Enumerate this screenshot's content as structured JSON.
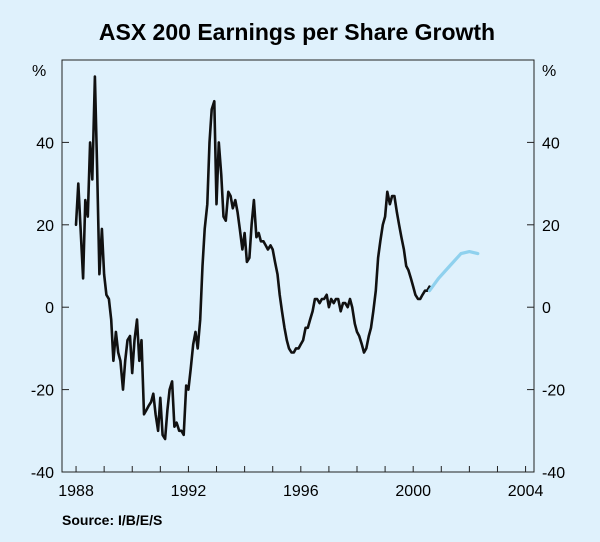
{
  "chart_data": {
    "type": "line",
    "title": "ASX 200 Earnings per Share Growth",
    "source": "Source: I/B/E/S",
    "y_unit_left": "%",
    "y_unit_right": "%",
    "xlim": [
      1987.5,
      2004.3
    ],
    "ylim": [
      -40,
      60
    ],
    "x_ticks": [
      1988,
      1992,
      1996,
      2000,
      2004
    ],
    "x_tick_labels": [
      "1988",
      "1992",
      "1996",
      "2000",
      "2004"
    ],
    "y_ticks": [
      -40,
      -20,
      0,
      20,
      40
    ],
    "y_tick_labels": [
      "-40",
      "-20",
      "0",
      "20",
      "40"
    ],
    "grid": false,
    "series": [
      {
        "color": "#111111",
        "points": [
          [
            1988.0,
            20
          ],
          [
            1988.08,
            30
          ],
          [
            1988.17,
            18
          ],
          [
            1988.25,
            7
          ],
          [
            1988.33,
            26
          ],
          [
            1988.42,
            22
          ],
          [
            1988.5,
            40
          ],
          [
            1988.58,
            31
          ],
          [
            1988.67,
            56
          ],
          [
            1988.75,
            34
          ],
          [
            1988.83,
            8
          ],
          [
            1988.92,
            19
          ],
          [
            1989.0,
            8
          ],
          [
            1989.08,
            3
          ],
          [
            1989.17,
            2
          ],
          [
            1989.25,
            -3
          ],
          [
            1989.33,
            -13
          ],
          [
            1989.42,
            -6
          ],
          [
            1989.5,
            -11
          ],
          [
            1989.58,
            -13
          ],
          [
            1989.67,
            -20
          ],
          [
            1989.75,
            -13
          ],
          [
            1989.83,
            -8
          ],
          [
            1989.92,
            -7
          ],
          [
            1990.0,
            -16
          ],
          [
            1990.08,
            -8
          ],
          [
            1990.17,
            -3
          ],
          [
            1990.25,
            -13
          ],
          [
            1990.33,
            -8
          ],
          [
            1990.42,
            -26
          ],
          [
            1990.5,
            -25
          ],
          [
            1990.58,
            -24
          ],
          [
            1990.67,
            -23
          ],
          [
            1990.75,
            -21
          ],
          [
            1990.83,
            -26
          ],
          [
            1990.92,
            -30
          ],
          [
            1991.0,
            -22
          ],
          [
            1991.08,
            -31
          ],
          [
            1991.17,
            -32
          ],
          [
            1991.25,
            -25
          ],
          [
            1991.33,
            -20
          ],
          [
            1991.42,
            -18
          ],
          [
            1991.5,
            -29
          ],
          [
            1991.58,
            -28
          ],
          [
            1991.67,
            -30
          ],
          [
            1991.75,
            -30
          ],
          [
            1991.83,
            -31
          ],
          [
            1991.92,
            -19
          ],
          [
            1992.0,
            -20
          ],
          [
            1992.08,
            -15
          ],
          [
            1992.17,
            -9
          ],
          [
            1992.25,
            -6
          ],
          [
            1992.33,
            -10
          ],
          [
            1992.42,
            -3
          ],
          [
            1992.5,
            10
          ],
          [
            1992.58,
            19
          ],
          [
            1992.67,
            25
          ],
          [
            1992.75,
            40
          ],
          [
            1992.83,
            48
          ],
          [
            1992.92,
            50
          ],
          [
            1993.0,
            25
          ],
          [
            1993.08,
            40
          ],
          [
            1993.17,
            32
          ],
          [
            1993.25,
            22
          ],
          [
            1993.33,
            21
          ],
          [
            1993.42,
            28
          ],
          [
            1993.5,
            27
          ],
          [
            1993.58,
            24
          ],
          [
            1993.67,
            26
          ],
          [
            1993.75,
            23
          ],
          [
            1993.83,
            19
          ],
          [
            1993.92,
            14
          ],
          [
            1994.0,
            18
          ],
          [
            1994.08,
            11
          ],
          [
            1994.17,
            12
          ],
          [
            1994.25,
            20
          ],
          [
            1994.33,
            26
          ],
          [
            1994.42,
            17
          ],
          [
            1994.5,
            18
          ],
          [
            1994.58,
            16
          ],
          [
            1994.67,
            16
          ],
          [
            1994.75,
            15
          ],
          [
            1994.83,
            14
          ],
          [
            1994.92,
            15
          ],
          [
            1995.0,
            14
          ],
          [
            1995.08,
            11
          ],
          [
            1995.17,
            8
          ],
          [
            1995.25,
            3
          ],
          [
            1995.33,
            -1
          ],
          [
            1995.42,
            -5
          ],
          [
            1995.5,
            -8
          ],
          [
            1995.58,
            -10
          ],
          [
            1995.67,
            -11
          ],
          [
            1995.75,
            -11
          ],
          [
            1995.83,
            -10
          ],
          [
            1995.92,
            -10
          ],
          [
            1996.0,
            -9
          ],
          [
            1996.08,
            -8
          ],
          [
            1996.17,
            -5
          ],
          [
            1996.25,
            -5
          ],
          [
            1996.33,
            -3
          ],
          [
            1996.42,
            -1
          ],
          [
            1996.5,
            2
          ],
          [
            1996.58,
            2
          ],
          [
            1996.67,
            1
          ],
          [
            1996.75,
            2
          ],
          [
            1996.83,
            2
          ],
          [
            1996.92,
            3
          ],
          [
            1997.0,
            0
          ],
          [
            1997.08,
            2
          ],
          [
            1997.17,
            1
          ],
          [
            1997.25,
            2
          ],
          [
            1997.33,
            2
          ],
          [
            1997.42,
            -1
          ],
          [
            1997.5,
            1
          ],
          [
            1997.58,
            1
          ],
          [
            1997.67,
            0
          ],
          [
            1997.75,
            2
          ],
          [
            1997.83,
            0
          ],
          [
            1997.92,
            -4
          ],
          [
            1998.0,
            -6
          ],
          [
            1998.08,
            -7
          ],
          [
            1998.17,
            -9
          ],
          [
            1998.25,
            -11
          ],
          [
            1998.33,
            -10
          ],
          [
            1998.42,
            -7
          ],
          [
            1998.5,
            -5
          ],
          [
            1998.58,
            -1
          ],
          [
            1998.67,
            4
          ],
          [
            1998.75,
            12
          ],
          [
            1998.83,
            16
          ],
          [
            1998.92,
            20
          ],
          [
            1999.0,
            22
          ],
          [
            1999.08,
            28
          ],
          [
            1999.17,
            25
          ],
          [
            1999.25,
            27
          ],
          [
            1999.33,
            27
          ],
          [
            1999.42,
            23
          ],
          [
            1999.5,
            20
          ],
          [
            1999.58,
            17
          ],
          [
            1999.67,
            14
          ],
          [
            1999.75,
            10
          ],
          [
            1999.83,
            9
          ],
          [
            1999.92,
            7
          ],
          [
            2000.0,
            5
          ],
          [
            2000.08,
            3
          ],
          [
            2000.17,
            2
          ],
          [
            2000.25,
            2
          ],
          [
            2000.33,
            3
          ],
          [
            2000.42,
            4
          ],
          [
            2000.5,
            4
          ],
          [
            2000.58,
            5
          ]
        ]
      },
      {
        "color": "#8fd1ee",
        "points": [
          [
            2000.58,
            4
          ],
          [
            2000.9,
            7
          ],
          [
            2001.3,
            10
          ],
          [
            2001.7,
            13
          ],
          [
            2002.0,
            13.5
          ],
          [
            2002.3,
            13
          ]
        ]
      }
    ]
  }
}
